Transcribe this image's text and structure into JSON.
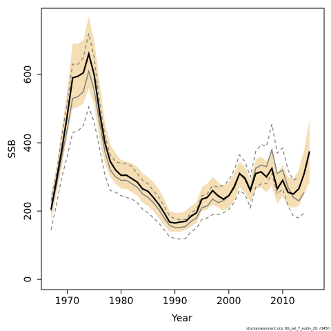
{
  "chart_data": {
    "type": "line",
    "xlabel": "Year",
    "ylabel": "SSB",
    "footnote": "stockassessment.org, NS_sel_7_exdiv_20, r0450",
    "x": [
      1967,
      1968,
      1969,
      1970,
      1971,
      1972,
      1973,
      1974,
      1975,
      1976,
      1977,
      1978,
      1979,
      1980,
      1981,
      1982,
      1983,
      1984,
      1985,
      1986,
      1987,
      1988,
      1989,
      1990,
      1991,
      1992,
      1993,
      1994,
      1995,
      1996,
      1997,
      1998,
      1999,
      2000,
      2001,
      2002,
      2003,
      2004,
      2005,
      2006,
      2007,
      2008,
      2009,
      2010,
      2011,
      2012,
      2013,
      2014,
      2015
    ],
    "band": {
      "color": "#f5deb3",
      "upper": [
        250,
        330,
        440,
        550,
        690,
        690,
        700,
        770,
        700,
        580,
        460,
        395,
        370,
        350,
        345,
        340,
        330,
        310,
        300,
        285,
        265,
        235,
        200,
        195,
        195,
        200,
        215,
        225,
        270,
        280,
        300,
        285,
        275,
        285,
        310,
        345,
        330,
        290,
        350,
        360,
        345,
        375,
        310,
        335,
        300,
        295,
        320,
        380,
        470
      ],
      "lower": [
        170,
        250,
        330,
        420,
        500,
        505,
        515,
        560,
        510,
        410,
        340,
        300,
        280,
        265,
        265,
        255,
        245,
        225,
        215,
        200,
        180,
        160,
        140,
        140,
        140,
        145,
        155,
        165,
        200,
        205,
        220,
        210,
        200,
        210,
        230,
        270,
        255,
        225,
        265,
        270,
        255,
        275,
        220,
        245,
        215,
        210,
        215,
        250,
        285
      ]
    },
    "series": [
      {
        "color": "#808080",
        "dash": true,
        "width": 1.3,
        "values": [
          230,
          310,
          420,
          520,
          630,
          630,
          650,
          720,
          650,
          520,
          420,
          365,
          345,
          340,
          340,
          330,
          310,
          290,
          280,
          260,
          240,
          215,
          185,
          178,
          175,
          175,
          195,
          205,
          245,
          250,
          275,
          270,
          275,
          290,
          320,
          365,
          345,
          300,
          375,
          395,
          390,
          455,
          370,
          385,
          320,
          290,
          300,
          null,
          null
        ]
      },
      {
        "color": "#808080",
        "dash": true,
        "width": 1.3,
        "values": [
          145,
          220,
          300,
          360,
          430,
          435,
          450,
          505,
          460,
          385,
          305,
          260,
          255,
          245,
          240,
          235,
          225,
          205,
          195,
          180,
          165,
          145,
          125,
          120,
          118,
          120,
          140,
          150,
          175,
          180,
          190,
          190,
          195,
          205,
          225,
          260,
          250,
          210,
          270,
          280,
          280,
          310,
          250,
          265,
          215,
          185,
          180,
          195,
          null
        ]
      },
      {
        "color": "#808080",
        "dash": false,
        "width": 1.5,
        "values": [
          200,
          275,
          360,
          440,
          530,
          535,
          550,
          610,
          555,
          460,
          375,
          320,
          300,
          290,
          290,
          280,
          270,
          250,
          240,
          225,
          205,
          180,
          158,
          152,
          152,
          155,
          170,
          180,
          210,
          215,
          235,
          225,
          230,
          245,
          275,
          310,
          300,
          265,
          325,
          335,
          330,
          380,
          310,
          320,
          270,
          240,
          230,
          255,
          null
        ]
      },
      {
        "color": "#000000",
        "dash": false,
        "width": 2.2,
        "values": [
          205,
          290,
          380,
          480,
          590,
          595,
          605,
          660,
          600,
          490,
          400,
          345,
          320,
          305,
          305,
          295,
          285,
          265,
          258,
          240,
          220,
          195,
          168,
          165,
          168,
          170,
          185,
          195,
          235,
          240,
          260,
          245,
          235,
          245,
          270,
          310,
          295,
          260,
          310,
          315,
          300,
          325,
          265,
          290,
          255,
          250,
          265,
          310,
          375
        ]
      }
    ],
    "xlim": [
      1965.2,
      2017.7
    ],
    "xticks": [
      1970,
      1980,
      1990,
      2000,
      2010
    ],
    "ylim": [
      -30,
      794
    ],
    "yticks": [
      0,
      200,
      400,
      600
    ]
  }
}
